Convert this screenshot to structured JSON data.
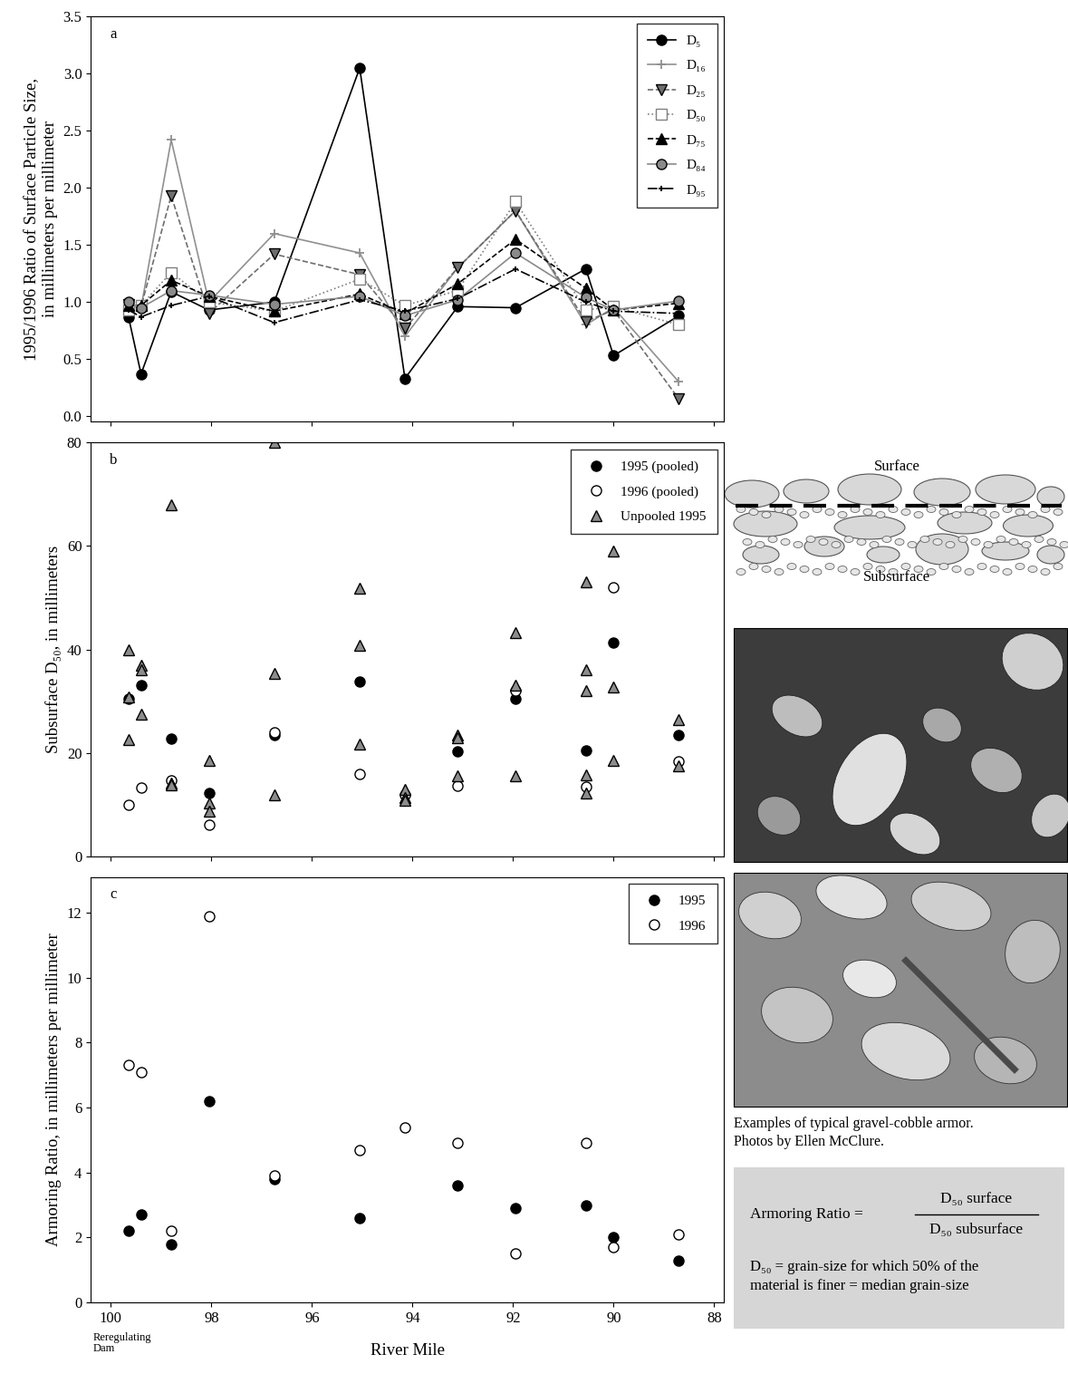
{
  "chart_data": [
    {
      "type": "line",
      "annotations": [
        "a"
      ],
      "ylabel": "1995/1996 Ratio of Surface Particle Size,\nin millimeters per millimeter",
      "x": [
        99.65,
        99.4,
        98.8,
        98.05,
        96.75,
        95.05,
        94.15,
        93.1,
        91.95,
        90.55,
        90.0,
        88.7
      ],
      "series": [
        {
          "name": "D₅",
          "color": "#000000",
          "marker": "circle",
          "line_style": "solid",
          "values": [
            0.87,
            0.37,
            1.09,
            0.93,
            1.0,
            3.05,
            0.33,
            0.96,
            0.95,
            1.29,
            0.53,
            0.88
          ]
        },
        {
          "name": "D₁₆",
          "color": "#909090",
          "marker": "plus",
          "line_style": "solid",
          "values": [
            0.97,
            0.95,
            2.42,
            1.0,
            1.6,
            1.43,
            0.7,
            1.3,
            1.8,
            0.8,
            0.95,
            0.3
          ]
        },
        {
          "name": "D₂₅",
          "color": "#6e6e6e",
          "marker": "triangle_down",
          "line_style": "dashed",
          "values": [
            0.98,
            0.96,
            1.93,
            0.9,
            1.42,
            1.24,
            0.77,
            1.3,
            1.8,
            0.83,
            0.93,
            0.15
          ]
        },
        {
          "name": "D₅₀",
          "color": "#808080",
          "marker": "open_square",
          "line_style": "dotted",
          "values": [
            0.93,
            0.97,
            1.26,
            1.0,
            0.92,
            1.2,
            0.97,
            1.1,
            1.88,
            0.93,
            0.96,
            0.8
          ]
        },
        {
          "name": "D₇₅",
          "color": "#000000",
          "marker": "triangle_up",
          "line_style": "dashed",
          "values": [
            0.97,
            0.97,
            1.19,
            1.05,
            0.92,
            1.07,
            0.9,
            1.16,
            1.55,
            1.12,
            0.93,
            0.99
          ]
        },
        {
          "name": "D₈₄",
          "color": "#8a8a8a",
          "marker": "circle",
          "line_style": "solid",
          "values": [
            1.0,
            0.95,
            1.1,
            1.06,
            0.98,
            1.05,
            0.88,
            1.02,
            1.43,
            1.04,
            0.93,
            1.01
          ]
        },
        {
          "name": "D₉₅",
          "color": "#000000",
          "marker": "small_plus",
          "line_style": "dashdot",
          "values": [
            0.93,
            0.87,
            0.97,
            1.05,
            0.82,
            1.02,
            0.92,
            1.03,
            1.29,
            1.0,
            0.92,
            0.9
          ]
        }
      ],
      "xlim": [
        100.4,
        87.8
      ],
      "xticks": [
        100,
        98,
        96,
        94,
        92,
        90,
        88
      ],
      "ylim": [
        -0.05,
        3.5
      ],
      "yticks": [
        {
          "value": 0,
          "label": "0.0"
        },
        {
          "value": 0.5,
          "label": "0.5"
        },
        {
          "value": 1,
          "label": "1.0"
        },
        {
          "value": 1.5,
          "label": "1.5"
        },
        {
          "value": 2,
          "label": "2.0"
        },
        {
          "value": 2.5,
          "label": "2.5"
        },
        {
          "value": 3,
          "label": "3.0"
        },
        {
          "value": 3.5,
          "label": "3.5"
        }
      ],
      "legend": "upper right",
      "tick_labels": "y"
    },
    {
      "type": "scatter",
      "annotations": [
        "b"
      ],
      "ylabel": "Subsurface D₅₀, in millimeters",
      "series": [
        {
          "name": "1995 (pooled)",
          "color": "#000000",
          "marker": "circle",
          "x": [
            99.65,
            99.4,
            98.8,
            98.05,
            96.75,
            95.05,
            94.15,
            93.1,
            91.95,
            90.55,
            90.0,
            88.7
          ],
          "values": [
            30.5,
            33.0,
            22.7,
            12.3,
            23.5,
            33.8,
            null,
            20.3,
            30.5,
            20.5,
            41.3,
            23.4
          ]
        },
        {
          "name": "1996 (pooled)",
          "color": "#000000",
          "marker": "open_circle",
          "x": [
            99.65,
            99.4,
            98.8,
            98.05,
            96.75,
            95.05,
            94.15,
            93.1,
            91.95,
            90.55,
            90.0,
            88.7
          ],
          "values": [
            9.9,
            13.3,
            14.7,
            6.1,
            24.0,
            15.9,
            11.8,
            13.6,
            32.0,
            13.5,
            52.0,
            18.3
          ]
        },
        {
          "name": "Unpooled 1995",
          "color": "#8c8c8c",
          "marker": "triangle_up",
          "x": [
            99.65,
            99.65,
            99.65,
            99.4,
            99.4,
            99.4,
            98.8,
            98.8,
            98.8,
            98.05,
            98.05,
            98.05,
            96.75,
            96.75,
            96.75,
            95.05,
            95.05,
            95.05,
            94.15,
            94.15,
            94.15,
            93.1,
            93.1,
            93.1,
            91.95,
            91.95,
            91.95,
            90.55,
            90.55,
            90.55,
            90.55,
            90.55,
            90.0,
            90.0,
            90.0,
            88.7,
            88.7
          ],
          "values": [
            40.0,
            30.8,
            22.6,
            37.0,
            36.0,
            27.5,
            68.0,
            14.2,
            13.8,
            18.5,
            10.3,
            8.8,
            80.0,
            35.3,
            11.9,
            51.8,
            40.8,
            21.7,
            12.9,
            11.3,
            10.8,
            23.4,
            23.0,
            15.6,
            43.2,
            33.0,
            15.6,
            53.0,
            36.0,
            32.0,
            15.7,
            12.3,
            59.0,
            32.8,
            18.5,
            26.4,
            17.4
          ]
        }
      ],
      "xlim": [
        100.4,
        87.8
      ],
      "xticks": [
        100,
        98,
        96,
        94,
        92,
        90,
        88
      ],
      "ylim": [
        0,
        80
      ],
      "yticks": [
        0,
        20,
        40,
        60,
        80
      ],
      "legend": "upper right",
      "tick_labels": "y"
    },
    {
      "type": "scatter",
      "annotations": [
        "c",
        "Reregulating\nDam"
      ],
      "ylabel": "Armoring Ratio, in millimeters per millimeter",
      "xlabel": "River Mile",
      "series": [
        {
          "name": "1995",
          "color": "#000000",
          "marker": "circle",
          "x": [
            99.65,
            99.4,
            98.8,
            98.05,
            96.75,
            95.05,
            94.15,
            93.1,
            91.95,
            90.55,
            90.0,
            88.7
          ],
          "values": [
            2.2,
            2.7,
            1.8,
            6.2,
            3.8,
            2.6,
            null,
            3.6,
            2.9,
            3.0,
            2.0,
            1.3
          ]
        },
        {
          "name": "1996",
          "color": "#000000",
          "marker": "open_circle",
          "x": [
            99.65,
            99.4,
            98.8,
            98.05,
            96.75,
            95.05,
            94.15,
            93.1,
            91.95,
            90.55,
            90.0,
            88.7
          ],
          "values": [
            7.3,
            7.1,
            2.2,
            11.9,
            3.9,
            4.7,
            5.4,
            4.9,
            1.5,
            4.9,
            1.7,
            2.1
          ]
        }
      ],
      "xlim": [
        100.4,
        87.8
      ],
      "xticks": [
        100,
        98,
        96,
        94,
        92,
        90,
        88
      ],
      "ylim": [
        0,
        13.1
      ],
      "yticks": [
        0,
        2,
        4,
        6,
        8,
        10,
        12
      ],
      "legend": "upper right"
    }
  ],
  "side_panel": {
    "diagram": {
      "top_label": "Surface",
      "bottom_label": "Subsurface"
    },
    "photo_caption": "Examples of typical gravel-cobble armor.\nPhotos by Ellen McClure.",
    "formula": {
      "lhs": "Armoring Ratio =",
      "numerator": "D₅₀ surface",
      "denominator": "D₅₀ subsurface",
      "definition": "D₅₀ = grain-size for which 50% of the\nmaterial is finer = median grain-size"
    }
  }
}
